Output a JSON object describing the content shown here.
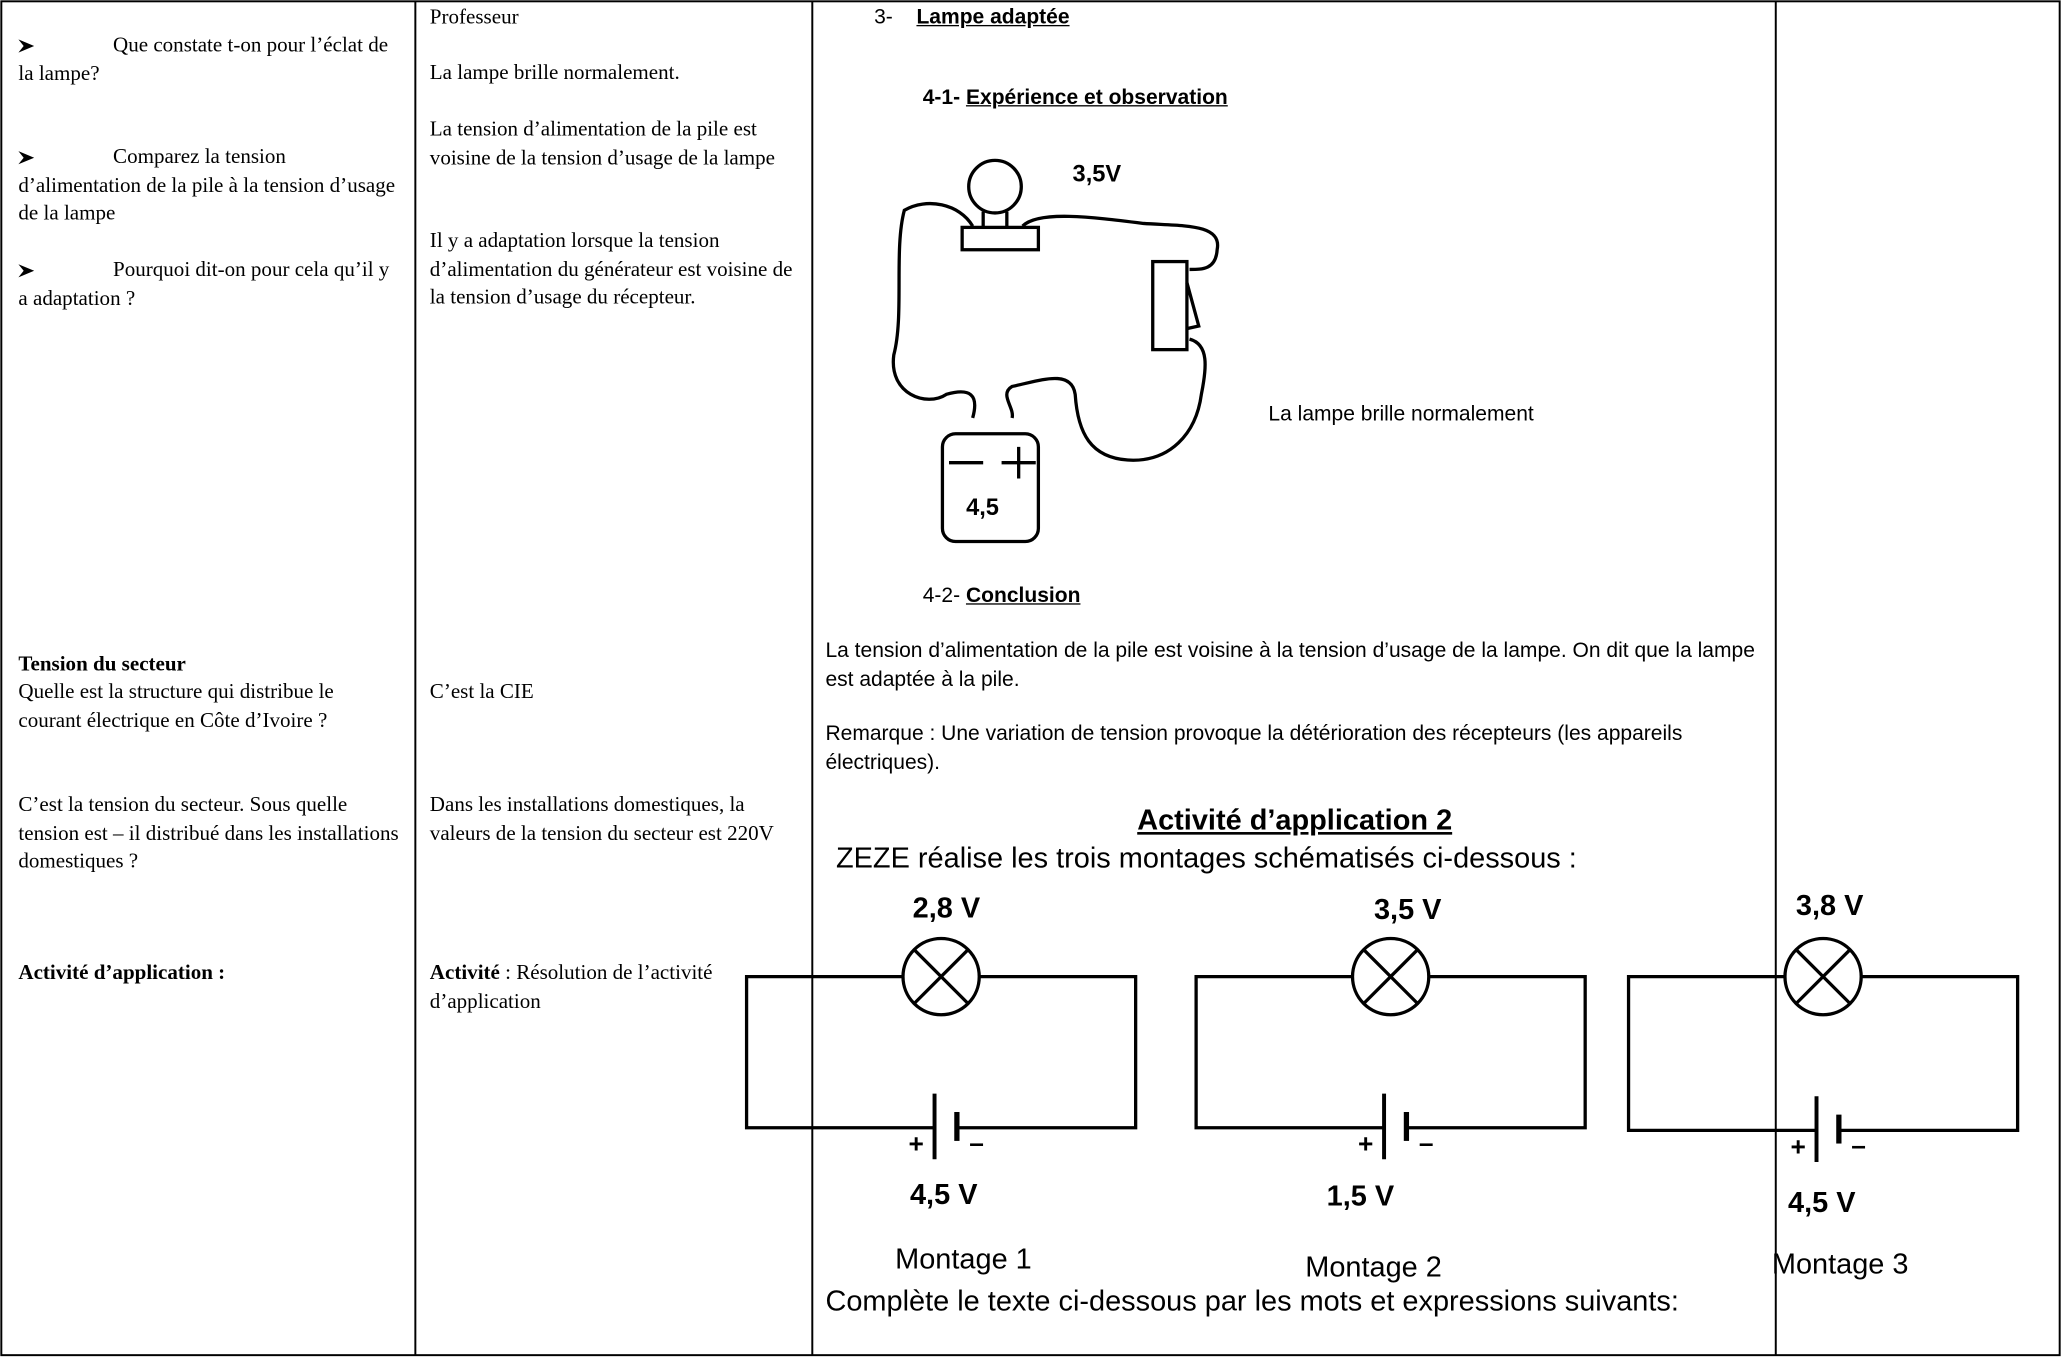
{
  "left_column": {
    "q1": "Que constate t-on pour l’éclat de la lampe?",
    "q2": "Comparez la tension d’alimentation de la pile à la tension d’usage de la lampe",
    "q3": "Pourquoi dit-on pour cela qu’il y a adaptation ?",
    "section_title": "Tension du secteur",
    "q4": "Quelle est la structure qui distribue le courant électrique en Côte d’Ivoire ?",
    "q5": "C’est la tension du secteur. Sous quelle tension est – il distribué dans les installations domestiques ?",
    "activity": "Activité d’application :"
  },
  "middle_column": {
    "header": "Professeur",
    "a1": "La lampe brille normalement.",
    "a2": "La tension d’alimentation de la pile est voisine de la tension d’usage de la lampe",
    "a3": "Il y a adaptation lorsque la tension d’alimentation du générateur est voisine de la tension d’usage du récepteur.",
    "a4": "C’est la CIE",
    "a5": "Dans les installations domestiques, la valeurs de la tension du secteur est 220V",
    "activity_label": "Activité",
    "activity_text": ": Résolution de l’activité d’application"
  },
  "right_column": {
    "section_number": "3-",
    "section_title": "Lampe adaptée",
    "sub1_number": "4-1-",
    "sub1_title": "Expérience et observation",
    "diagram": {
      "lamp_voltage": "3,5V",
      "battery_voltage": "4,5",
      "observation": "La lampe brille normalement"
    },
    "sub2_number": "4-2-",
    "sub2_title": "Conclusion",
    "conclusion": "La tension d’alimentation de la pile est voisine à la tension d’usage de la lampe. On dit que la lampe est adaptée à la pile.",
    "remark": "Remarque : Une variation de tension provoque la détérioration des récepteurs (les appareils électriques).",
    "activity_title": "Activité d’application 2",
    "activity_intro": "ZEZE réalise les trois montages schématisés ci-dessous :",
    "circuits": [
      {
        "lamp": "2,8 V",
        "battery": "4,5 V",
        "plus": "+",
        "minus": "–",
        "name": "Montage 1"
      },
      {
        "lamp": "3,5 V",
        "battery": "1,5 V",
        "plus": "+",
        "minus": "–",
        "name": "Montage 2"
      },
      {
        "lamp": "3,8 V",
        "battery": "4,5 V",
        "plus": "+",
        "minus": "–",
        "name": "Montage 3"
      }
    ],
    "instruction": "Complète le texte ci-dessous par les mots et expressions suivants:"
  }
}
